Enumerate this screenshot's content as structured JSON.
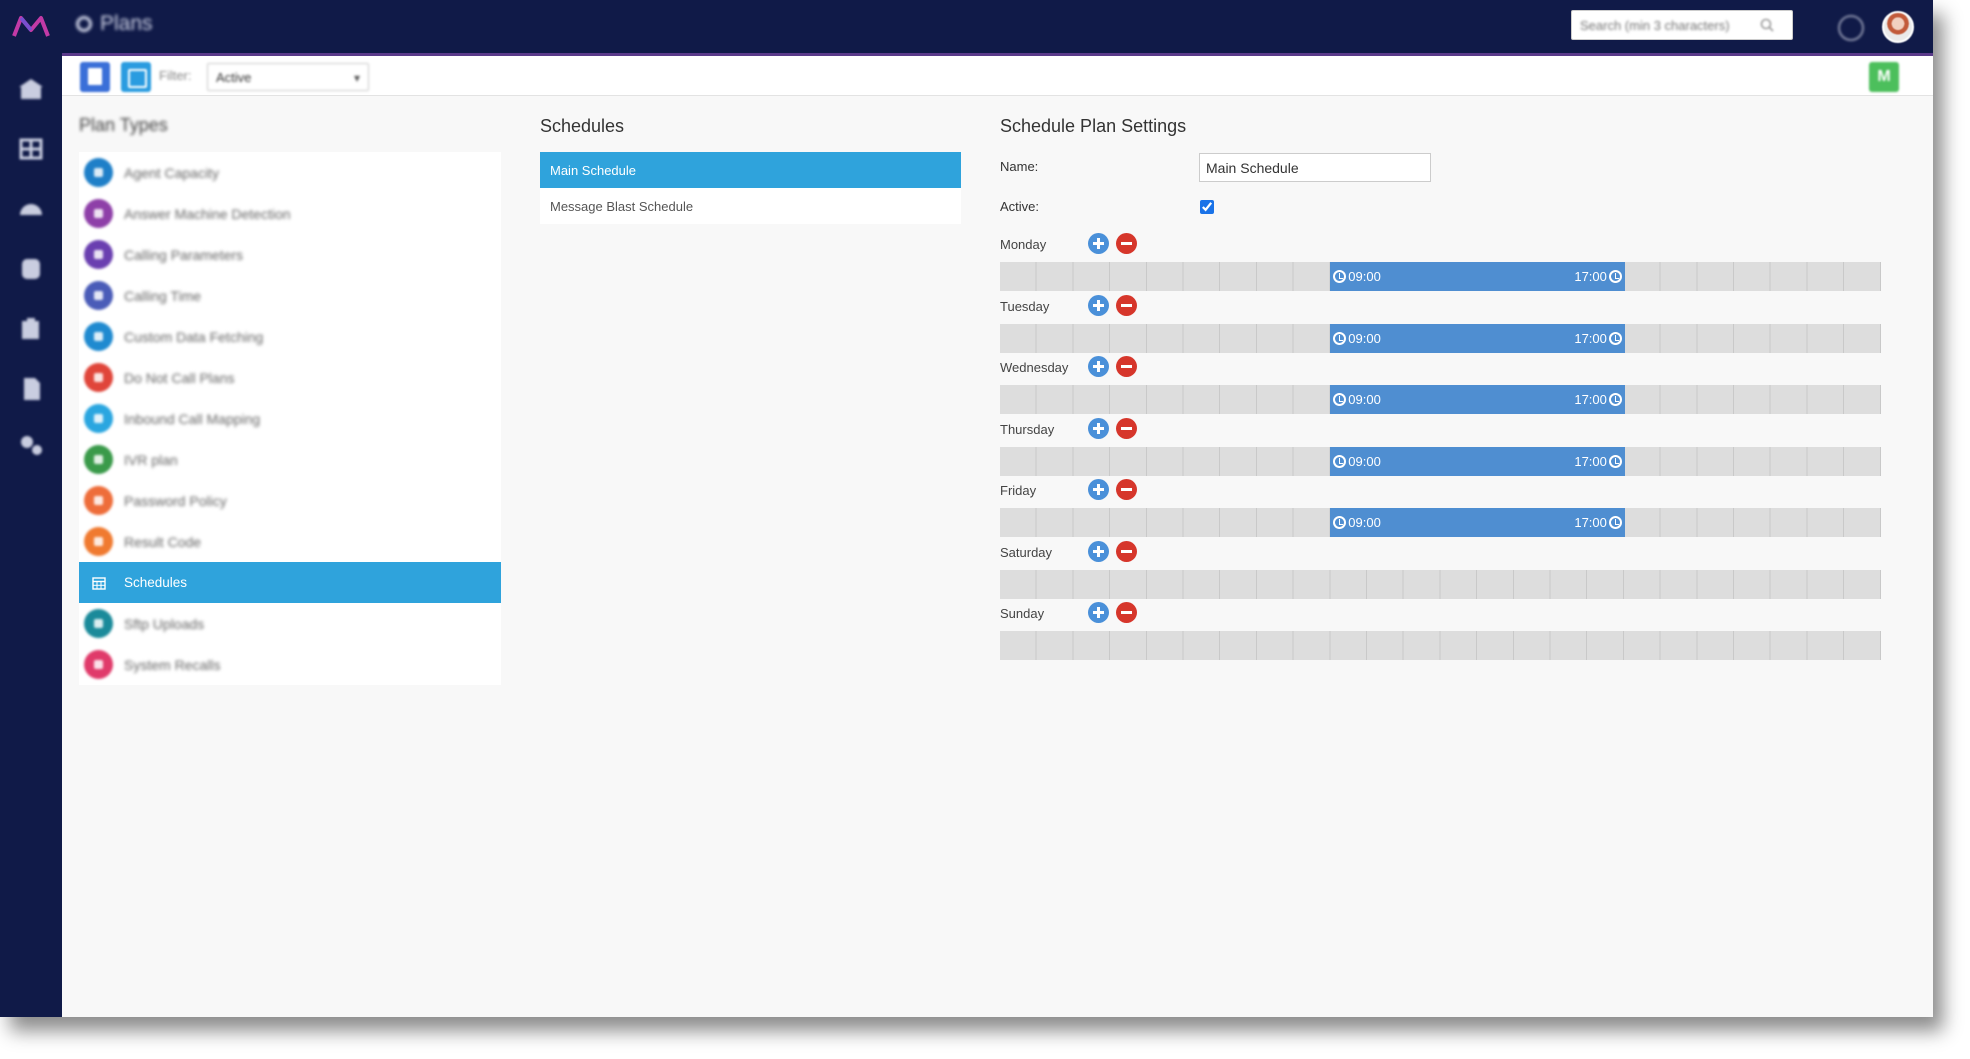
{
  "app": {
    "title": "Plans",
    "search_placeholder": "Search (min 3 characters)",
    "user_initial": "M"
  },
  "toolbar": {
    "filter_label": "Filter:",
    "filter_value": "Active"
  },
  "nav": {
    "icons": [
      "home-icon",
      "grid-icon",
      "dashboard-icon",
      "database-icon",
      "clipboard-icon",
      "document-icon",
      "settings-icon"
    ]
  },
  "plan_types": {
    "title": "Plan Types",
    "items": [
      {
        "label": "Agent Capacity",
        "color": "#1e7fc8"
      },
      {
        "label": "Answer Machine Detection",
        "color": "#8e3fa8"
      },
      {
        "label": "Calling Parameters",
        "color": "#6a3fb0"
      },
      {
        "label": "Calling Time",
        "color": "#4a5cb8"
      },
      {
        "label": "Custom Data Fetching",
        "color": "#1f8ad0"
      },
      {
        "label": "Do Not Call Plans",
        "color": "#e0453a"
      },
      {
        "label": "Inbound Call Mapping",
        "color": "#2aa6e0"
      },
      {
        "label": "IVR plan",
        "color": "#3a9a4a"
      },
      {
        "label": "Password Policy",
        "color": "#ee6d3a"
      },
      {
        "label": "Result Code",
        "color": "#f07a30"
      },
      {
        "label": "Schedules",
        "color": "#2fa3dc",
        "active": true
      },
      {
        "label": "Sftp Uploads",
        "color": "#1a8a9a"
      },
      {
        "label": "System Recalls",
        "color": "#e03a6a"
      }
    ]
  },
  "schedules": {
    "title": "Schedules",
    "items": [
      {
        "label": "Main Schedule",
        "active": true
      },
      {
        "label": "Message Blast Schedule",
        "active": false
      }
    ]
  },
  "settings": {
    "title": "Schedule Plan Settings",
    "name_label": "Name:",
    "name_value": "Main Schedule",
    "active_label": "Active:",
    "active_checked": true,
    "days": [
      {
        "label": "Monday",
        "start": "09:00",
        "end": "17:00"
      },
      {
        "label": "Tuesday",
        "start": "09:00",
        "end": "17:00"
      },
      {
        "label": "Wednesday",
        "start": "09:00",
        "end": "17:00"
      },
      {
        "label": "Thursday",
        "start": "09:00",
        "end": "17:00"
      },
      {
        "label": "Friday",
        "start": "09:00",
        "end": "17:00"
      },
      {
        "label": "Saturday",
        "start": null,
        "end": null
      },
      {
        "label": "Sunday",
        "start": null,
        "end": null
      }
    ]
  }
}
